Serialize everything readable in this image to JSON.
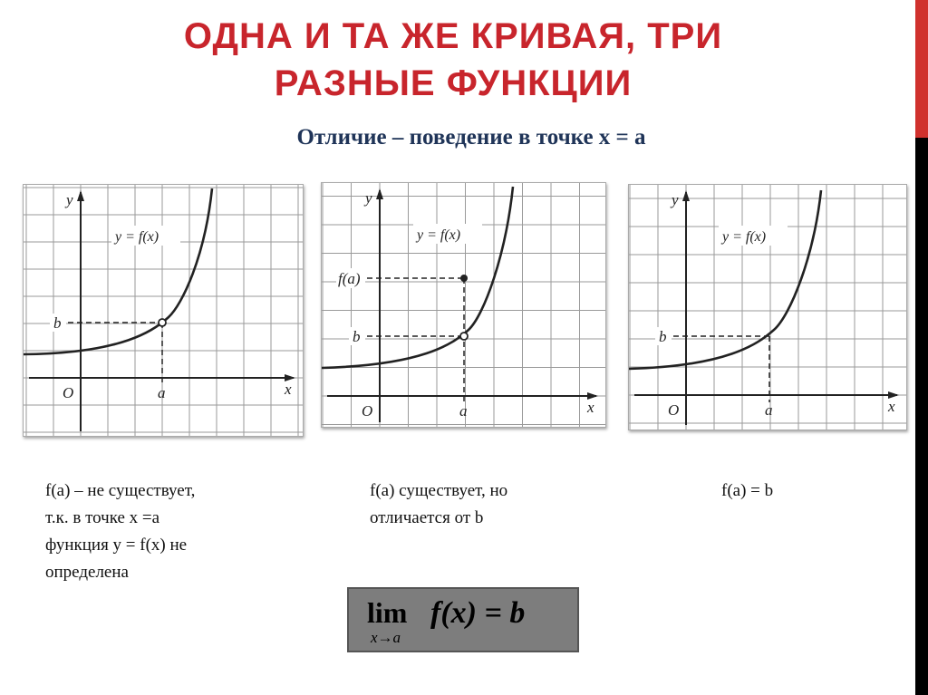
{
  "slide": {
    "title_line1": "ОДНА И ТА ЖЕ КРИВАЯ, ТРИ",
    "title_line2": "РАЗНЫЕ ФУНКЦИИ",
    "subtitle": "Отличие – поведение в точке  x = a",
    "accent_color": "#c8252c"
  },
  "graphs": [
    {
      "y_label": "y",
      "x_label": "x",
      "origin_label": "O",
      "a_label": "a",
      "b_label": "b",
      "curve_label": "y = f(x)",
      "point_at_a": "hollow",
      "fa_label": ""
    },
    {
      "y_label": "y",
      "x_label": "x",
      "origin_label": "O",
      "a_label": "a",
      "b_label": "b",
      "curve_label": "y = f(x)",
      "point_at_a": "hollow",
      "fa_label": "f(a)"
    },
    {
      "y_label": "y",
      "x_label": "x",
      "origin_label": "O",
      "a_label": "a",
      "b_label": "b",
      "curve_label": "y = f(x)",
      "point_at_a": "none",
      "fa_label": ""
    }
  ],
  "captions": {
    "col1": [
      "f(a) – не существует,",
      "т.к. в точке x =a",
      "функция y = f(x)  не",
      "определена"
    ],
    "col2": [
      "f(a) существует, но",
      "отличается от  b"
    ],
    "col3": [
      "f(a) = b"
    ]
  },
  "formula": {
    "lim": "lim",
    "sub": "x→a",
    "expr": "f(x) = ",
    "rhs": "b"
  }
}
